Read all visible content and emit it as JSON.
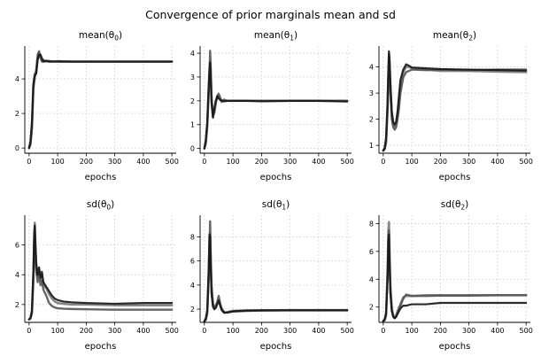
{
  "figure": {
    "title": "Convergence of prior marginals mean and sd"
  },
  "colors": {
    "line_dark": "#151515",
    "line_mid": "#555555",
    "line_light": "#7a7a7a"
  },
  "chart_data": [
    {
      "type": "line",
      "title": "mean(θ₀)",
      "title_base": "mean(θ",
      "title_sub": "0",
      "xlabel": "epochs",
      "xlim": [
        -15,
        515
      ],
      "ylim": [
        -0.3,
        5.9
      ],
      "xticks": [
        0,
        100,
        200,
        300,
        400,
        500
      ],
      "yticks": [
        0,
        2,
        4
      ],
      "grid": true,
      "series": [
        {
          "x": [
            0,
            5,
            10,
            15,
            20,
            25,
            30,
            35,
            40,
            45,
            50,
            60,
            70,
            80,
            100,
            150,
            200,
            300,
            400,
            500
          ],
          "values": [
            0,
            0.3,
            1.3,
            3.6,
            4.3,
            4.4,
            5.2,
            5.5,
            5.3,
            5.1,
            5.0,
            5.05,
            5.0,
            5.02,
            5.0,
            5.0,
            5.0,
            5.0,
            5.0,
            5.0
          ]
        },
        {
          "x": [
            0,
            5,
            10,
            15,
            20,
            25,
            30,
            35,
            40,
            45,
            50,
            60,
            70,
            80,
            100,
            150,
            200,
            300,
            400,
            500
          ],
          "values": [
            0,
            0.2,
            1.1,
            3.4,
            4.1,
            4.5,
            5.4,
            5.6,
            5.2,
            5.0,
            5.1,
            5.0,
            5.05,
            5.0,
            5.03,
            5.0,
            5.0,
            5.0,
            5.0,
            5.0
          ]
        },
        {
          "x": [
            0,
            5,
            10,
            15,
            20,
            25,
            30,
            35,
            40,
            45,
            50,
            60,
            70,
            80,
            100,
            150,
            200,
            300,
            400,
            500
          ],
          "values": [
            0,
            0.4,
            1.5,
            3.7,
            4.2,
            4.3,
            5.1,
            5.4,
            5.4,
            5.2,
            5.0,
            5.05,
            5.0,
            5.0,
            5.0,
            5.0,
            5.0,
            5.0,
            5.0,
            5.0
          ]
        }
      ]
    },
    {
      "type": "line",
      "title": "mean(θ₁)",
      "title_base": "mean(θ",
      "title_sub": "1",
      "xlabel": "epochs",
      "xlim": [
        -15,
        515
      ],
      "ylim": [
        -0.2,
        4.3
      ],
      "xticks": [
        0,
        100,
        200,
        300,
        400,
        500
      ],
      "yticks": [
        0,
        1,
        2,
        3,
        4
      ],
      "grid": true,
      "series": [
        {
          "x": [
            0,
            5,
            10,
            15,
            18,
            20,
            22,
            25,
            30,
            35,
            40,
            45,
            50,
            60,
            70,
            80,
            100,
            150,
            200,
            300,
            400,
            500
          ],
          "values": [
            0,
            0.3,
            1.0,
            2.5,
            3.4,
            3.7,
            3.2,
            2.0,
            1.3,
            1.6,
            2.0,
            2.1,
            2.2,
            1.95,
            2.0,
            2.0,
            2.0,
            2.0,
            2.0,
            2.0,
            2.0,
            2.0
          ]
        },
        {
          "x": [
            0,
            5,
            10,
            15,
            18,
            20,
            22,
            25,
            30,
            35,
            40,
            45,
            50,
            60,
            70,
            80,
            100,
            150,
            200,
            300,
            400,
            500
          ],
          "values": [
            0,
            0.2,
            0.9,
            2.3,
            3.2,
            4.1,
            3.5,
            2.2,
            1.4,
            1.5,
            1.9,
            2.2,
            2.3,
            2.0,
            2.05,
            2.0,
            2.0,
            2.0,
            2.0,
            2.0,
            2.0,
            2.0
          ]
        },
        {
          "x": [
            0,
            5,
            10,
            15,
            18,
            20,
            22,
            25,
            30,
            35,
            40,
            45,
            50,
            60,
            70,
            80,
            100,
            150,
            200,
            300,
            400,
            500
          ],
          "values": [
            0,
            0.35,
            1.1,
            2.6,
            3.3,
            3.6,
            3.0,
            1.9,
            1.3,
            1.7,
            2.0,
            2.2,
            2.1,
            2.0,
            1.98,
            2.0,
            2.0,
            2.0,
            1.98,
            2.0,
            2.0,
            1.97
          ]
        }
      ]
    },
    {
      "type": "line",
      "title": "mean(θ₂)",
      "title_base": "mean(θ",
      "title_sub": "2",
      "xlabel": "epochs",
      "xlim": [
        -15,
        515
      ],
      "ylim": [
        0.7,
        4.8
      ],
      "xticks": [
        0,
        100,
        200,
        300,
        400,
        500
      ],
      "yticks": [
        1,
        2,
        3,
        4
      ],
      "grid": true,
      "series": [
        {
          "x": [
            0,
            5,
            10,
            15,
            18,
            20,
            22,
            25,
            30,
            35,
            40,
            45,
            50,
            55,
            60,
            70,
            80,
            90,
            100,
            150,
            200,
            300,
            400,
            500
          ],
          "values": [
            0.8,
            0.9,
            1.2,
            2.5,
            3.8,
            4.5,
            4.2,
            3.2,
            2.1,
            1.8,
            1.7,
            1.8,
            2.1,
            2.6,
            3.2,
            3.8,
            4.0,
            4.0,
            3.95,
            3.9,
            3.85,
            3.85,
            3.82,
            3.8
          ]
        },
        {
          "x": [
            0,
            5,
            10,
            15,
            18,
            20,
            22,
            25,
            30,
            35,
            40,
            45,
            50,
            55,
            60,
            70,
            80,
            90,
            100,
            150,
            200,
            300,
            400,
            500
          ],
          "values": [
            0.8,
            0.85,
            1.1,
            2.3,
            3.6,
            4.3,
            4.0,
            3.0,
            2.0,
            1.7,
            1.6,
            1.7,
            2.0,
            2.4,
            3.0,
            3.6,
            3.8,
            3.85,
            3.9,
            3.88,
            3.9,
            3.88,
            3.9,
            3.9
          ]
        },
        {
          "x": [
            0,
            5,
            10,
            15,
            18,
            20,
            22,
            25,
            30,
            35,
            40,
            45,
            50,
            55,
            60,
            70,
            80,
            90,
            100,
            150,
            200,
            300,
            400,
            500
          ],
          "values": [
            0.8,
            0.9,
            1.3,
            2.6,
            3.9,
            4.6,
            4.3,
            3.4,
            2.3,
            1.9,
            1.8,
            1.9,
            2.3,
            2.9,
            3.5,
            3.9,
            4.1,
            4.05,
            3.98,
            3.95,
            3.92,
            3.9,
            3.88,
            3.86
          ]
        }
      ]
    },
    {
      "type": "line",
      "title": "sd(θ₀)",
      "title_base": "sd(θ",
      "title_sub": "0",
      "xlabel": "epochs",
      "xlim": [
        -15,
        515
      ],
      "ylim": [
        0.8,
        8.0
      ],
      "xticks": [
        0,
        100,
        200,
        300,
        400,
        500
      ],
      "yticks": [
        2,
        4,
        6
      ],
      "grid": true,
      "series": [
        {
          "x": [
            0,
            5,
            10,
            15,
            18,
            20,
            22,
            25,
            30,
            35,
            40,
            45,
            50,
            60,
            70,
            80,
            90,
            100,
            120,
            150,
            200,
            300,
            400,
            500
          ],
          "values": [
            1.0,
            1.1,
            1.5,
            4.0,
            6.5,
            7.5,
            6.0,
            4.5,
            3.8,
            4.3,
            3.6,
            4.0,
            3.3,
            3.1,
            2.7,
            2.4,
            2.2,
            2.1,
            2.05,
            2.0,
            2.0,
            1.95,
            1.95,
            1.95
          ]
        },
        {
          "x": [
            0,
            5,
            10,
            15,
            18,
            20,
            22,
            25,
            30,
            35,
            40,
            45,
            50,
            60,
            70,
            80,
            90,
            100,
            120,
            150,
            200,
            300,
            400,
            500
          ],
          "values": [
            1.0,
            1.05,
            1.4,
            3.6,
            6.0,
            6.8,
            5.5,
            4.2,
            3.5,
            4.0,
            3.3,
            3.6,
            3.0,
            2.6,
            2.1,
            1.9,
            1.8,
            1.75,
            1.72,
            1.7,
            1.68,
            1.65,
            1.65,
            1.65
          ]
        },
        {
          "x": [
            0,
            5,
            10,
            15,
            18,
            20,
            22,
            25,
            30,
            35,
            40,
            45,
            50,
            60,
            70,
            80,
            90,
            100,
            120,
            150,
            200,
            300,
            400,
            500
          ],
          "values": [
            1.0,
            1.1,
            1.6,
            4.2,
            6.8,
            7.3,
            6.2,
            4.8,
            4.0,
            4.5,
            3.8,
            4.2,
            3.5,
            3.2,
            2.9,
            2.6,
            2.4,
            2.3,
            2.2,
            2.15,
            2.1,
            2.05,
            2.1,
            2.1
          ]
        }
      ]
    },
    {
      "type": "line",
      "title": "sd(θ₁)",
      "title_base": "sd(θ",
      "title_sub": "1",
      "xlabel": "epochs",
      "xlim": [
        -15,
        515
      ],
      "ylim": [
        0.9,
        9.8
      ],
      "xticks": [
        0,
        100,
        200,
        300,
        400,
        500
      ],
      "yticks": [
        2,
        4,
        6,
        8
      ],
      "grid": true,
      "series": [
        {
          "x": [
            0,
            5,
            10,
            15,
            18,
            20,
            22,
            25,
            30,
            35,
            40,
            45,
            50,
            55,
            60,
            65,
            70,
            80,
            90,
            100,
            150,
            200,
            300,
            400,
            500
          ],
          "values": [
            1.0,
            1.2,
            1.8,
            5.0,
            8.0,
            8.3,
            6.0,
            3.5,
            2.3,
            2.0,
            2.2,
            2.5,
            2.8,
            2.4,
            2.0,
            1.8,
            1.7,
            1.75,
            1.8,
            1.85,
            1.9,
            1.9,
            1.92,
            1.92,
            1.92
          ]
        },
        {
          "x": [
            0,
            5,
            10,
            15,
            18,
            20,
            22,
            25,
            30,
            35,
            40,
            45,
            50,
            55,
            60,
            65,
            70,
            80,
            90,
            100,
            150,
            200,
            300,
            400,
            500
          ],
          "values": [
            1.0,
            1.1,
            1.6,
            4.5,
            7.5,
            9.3,
            6.8,
            4.0,
            2.5,
            2.1,
            2.3,
            2.6,
            3.1,
            2.5,
            2.1,
            1.9,
            1.75,
            1.7,
            1.75,
            1.8,
            1.85,
            1.88,
            1.9,
            1.9,
            1.9
          ]
        },
        {
          "x": [
            0,
            5,
            10,
            15,
            18,
            20,
            22,
            25,
            30,
            35,
            40,
            45,
            50,
            55,
            60,
            65,
            70,
            80,
            90,
            100,
            150,
            200,
            300,
            400,
            500
          ],
          "values": [
            1.0,
            1.2,
            1.9,
            5.2,
            8.2,
            8.0,
            5.7,
            3.3,
            2.2,
            2.0,
            2.1,
            2.4,
            2.7,
            2.3,
            1.95,
            1.8,
            1.7,
            1.72,
            1.78,
            1.82,
            1.88,
            1.9,
            1.9,
            1.9,
            1.9
          ]
        }
      ]
    },
    {
      "type": "line",
      "title": "sd(θ₂)",
      "title_base": "sd(θ",
      "title_sub": "2",
      "xlabel": "epochs",
      "xlim": [
        -15,
        515
      ],
      "ylim": [
        0.9,
        8.6
      ],
      "xticks": [
        0,
        100,
        200,
        300,
        400,
        500
      ],
      "yticks": [
        2,
        4,
        6,
        8
      ],
      "grid": true,
      "series": [
        {
          "x": [
            0,
            5,
            10,
            15,
            18,
            20,
            22,
            25,
            30,
            35,
            40,
            45,
            50,
            60,
            70,
            80,
            90,
            100,
            150,
            200,
            300,
            400,
            500
          ],
          "values": [
            1.0,
            1.1,
            1.5,
            4.5,
            7.5,
            8.1,
            6.0,
            3.5,
            1.9,
            1.4,
            1.3,
            1.4,
            1.7,
            2.2,
            2.7,
            2.8,
            2.8,
            2.8,
            2.85,
            2.85,
            2.85,
            2.85,
            2.85
          ]
        },
        {
          "x": [
            0,
            5,
            10,
            15,
            18,
            20,
            22,
            25,
            30,
            35,
            40,
            45,
            50,
            60,
            70,
            80,
            90,
            100,
            150,
            200,
            300,
            400,
            500
          ],
          "values": [
            1.0,
            1.05,
            1.4,
            4.2,
            7.0,
            7.5,
            5.5,
            3.2,
            1.8,
            1.3,
            1.2,
            1.3,
            1.6,
            2.1,
            2.6,
            2.9,
            2.85,
            2.8,
            2.8,
            2.82,
            2.82,
            2.85,
            2.85
          ]
        },
        {
          "x": [
            0,
            5,
            10,
            15,
            18,
            20,
            22,
            25,
            30,
            35,
            40,
            45,
            50,
            60,
            70,
            80,
            90,
            100,
            150,
            200,
            300,
            400,
            500
          ],
          "values": [
            1.0,
            1.1,
            1.6,
            4.0,
            6.8,
            7.2,
            5.2,
            3.0,
            1.7,
            1.3,
            1.2,
            1.3,
            1.5,
            1.9,
            2.1,
            2.1,
            2.15,
            2.2,
            2.2,
            2.3,
            2.3,
            2.3,
            2.3
          ]
        }
      ]
    }
  ]
}
